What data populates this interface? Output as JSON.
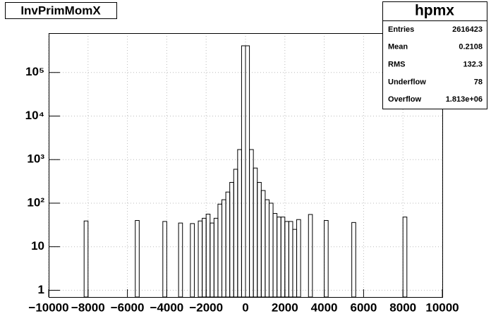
{
  "chart_data": {
    "type": "histogram",
    "title": "InvPrimMomX",
    "bins": [
      -10000,
      -9800,
      -9600,
      -9400,
      -9200,
      -9000,
      -8800,
      -8600,
      -8400,
      -8200,
      -8000,
      -7800,
      -7600,
      -7400,
      -7200,
      -7000,
      -6800,
      -6600,
      -6400,
      -6200,
      -6000,
      -5800,
      -5600,
      -5400,
      -5200,
      -5000,
      -4800,
      -4600,
      -4400,
      -4200,
      -4000,
      -3800,
      -3600,
      -3400,
      -3200,
      -3000,
      -2800,
      -2600,
      -2400,
      -2200,
      -2000,
      -1800,
      -1600,
      -1400,
      -1200,
      -1000,
      -800,
      -600,
      -400,
      -200,
      0,
      200,
      400,
      600,
      800,
      1000,
      1200,
      1400,
      1600,
      1800,
      2000,
      2200,
      2400,
      2600,
      2800,
      3000,
      3200,
      3400,
      3600,
      3800,
      4000,
      4200,
      4400,
      4600,
      4800,
      5000,
      5200,
      5400,
      5600,
      5800,
      6000,
      6200,
      6400,
      6600,
      6800,
      7000,
      7200,
      7400,
      7600,
      7800,
      8000,
      8200,
      8400,
      8600,
      8800,
      9000,
      9200,
      9400,
      9600,
      9800,
      10000
    ],
    "values": [
      0,
      0,
      0,
      0,
      0,
      0,
      0,
      0,
      0,
      39,
      0,
      0,
      0,
      0,
      0,
      0,
      0,
      0,
      0,
      0,
      0,
      0,
      40,
      0,
      0,
      0,
      0,
      0,
      0,
      38,
      0,
      0,
      0,
      35,
      0,
      0,
      34,
      0,
      39,
      45,
      56,
      35,
      45,
      95,
      120,
      180,
      300,
      600,
      1700,
      410000,
      410000,
      1700,
      640,
      300,
      195,
      120,
      100,
      58,
      48,
      48,
      38,
      38,
      25,
      42,
      0,
      0,
      55,
      0,
      0,
      0,
      40,
      0,
      0,
      0,
      0,
      0,
      0,
      36,
      0,
      0,
      0,
      0,
      0,
      0,
      0,
      0,
      0,
      0,
      0,
      0,
      48,
      0,
      0,
      0,
      0,
      0,
      0,
      0,
      0,
      0
    ],
    "color": "#000000",
    "xlim": [
      -10000,
      10000
    ],
    "xticks": [
      {
        "value": -10000,
        "label": "−10000"
      },
      {
        "value": -8000,
        "label": "−8000"
      },
      {
        "value": -6000,
        "label": "−6000"
      },
      {
        "value": -4000,
        "label": "−4000"
      },
      {
        "value": -2000,
        "label": "−2000"
      },
      0,
      2000,
      4000,
      6000,
      8000,
      10000
    ],
    "ylim": [
      0.7,
      800000
    ],
    "log_y": true,
    "yticks": [
      1,
      10,
      {
        "value": 100,
        "label": "10²"
      },
      {
        "value": 1000,
        "label": "10³"
      },
      {
        "value": 10000,
        "label": "10⁴"
      },
      {
        "value": 100000,
        "label": "10⁵"
      }
    ],
    "grid": true,
    "stats": {
      "name": "hpmx",
      "rows": [
        {
          "label": "Entries",
          "value": "2616423"
        },
        {
          "label": "Mean",
          "value": "0.2108"
        },
        {
          "label": "RMS",
          "value": "132.3"
        },
        {
          "label": "Underflow",
          "value": "78"
        },
        {
          "label": "Overflow",
          "value": "1.813e+06"
        }
      ]
    }
  }
}
